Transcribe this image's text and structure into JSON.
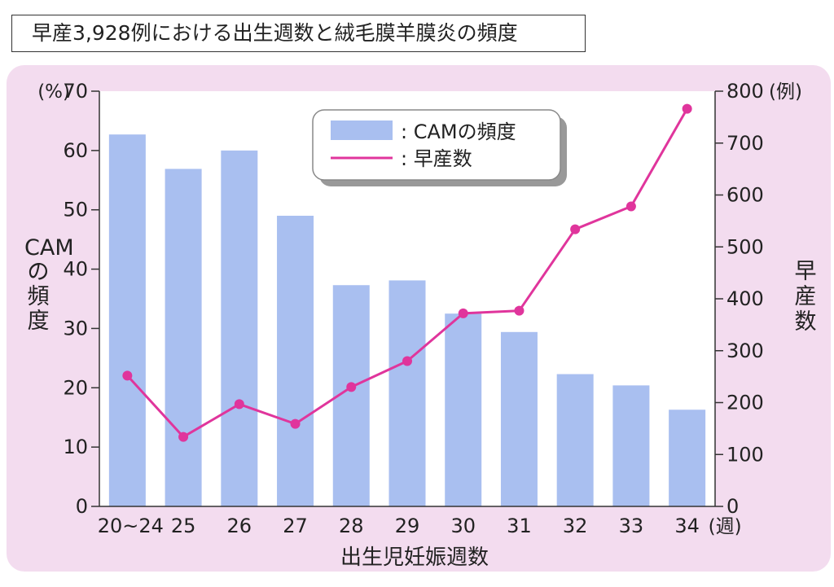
{
  "title": "早産3,928例における出生週数と絨毛膜羊膜炎の頻度",
  "chart_data": {
    "type": "bar+line",
    "categories": [
      "20~24",
      "25",
      "26",
      "27",
      "28",
      "29",
      "30",
      "31",
      "32",
      "33",
      "34"
    ],
    "series": [
      {
        "name": "CAMの頻度",
        "kind": "bar",
        "axis": "left",
        "unit": "%",
        "values": [
          62.7,
          56.9,
          60.0,
          49.0,
          37.3,
          38.1,
          32.5,
          29.4,
          22.3,
          20.4,
          16.3
        ]
      },
      {
        "name": "早産数",
        "kind": "line",
        "axis": "right",
        "unit": "例",
        "values": [
          252,
          134,
          197,
          159,
          230,
          280,
          372,
          377,
          534,
          578,
          766
        ]
      }
    ],
    "left_axis": {
      "label": "CAMの頻度",
      "unit": "(%)",
      "ylim": [
        0,
        70
      ],
      "ticks": [
        "0",
        "10",
        "20",
        "30",
        "40",
        "50",
        "60",
        "70"
      ]
    },
    "right_axis": {
      "label": "早産数",
      "unit": "(例)",
      "ylim": [
        0,
        800
      ],
      "ticks": [
        "0",
        "100",
        "200",
        "300",
        "400",
        "500",
        "600",
        "700",
        "800"
      ]
    },
    "x_axis": {
      "label": "出生児妊娠週数",
      "unit": "(週)"
    },
    "legend": {
      "placement": "top-center",
      "items": [
        ": CAMの頻度",
        ": 早産数"
      ]
    },
    "colors": {
      "bar": "#a9bff0",
      "line": "#e0359c",
      "plot_bg": "#ffffff",
      "panel_bg": "#f3dcef",
      "axis": "#333333"
    }
  }
}
